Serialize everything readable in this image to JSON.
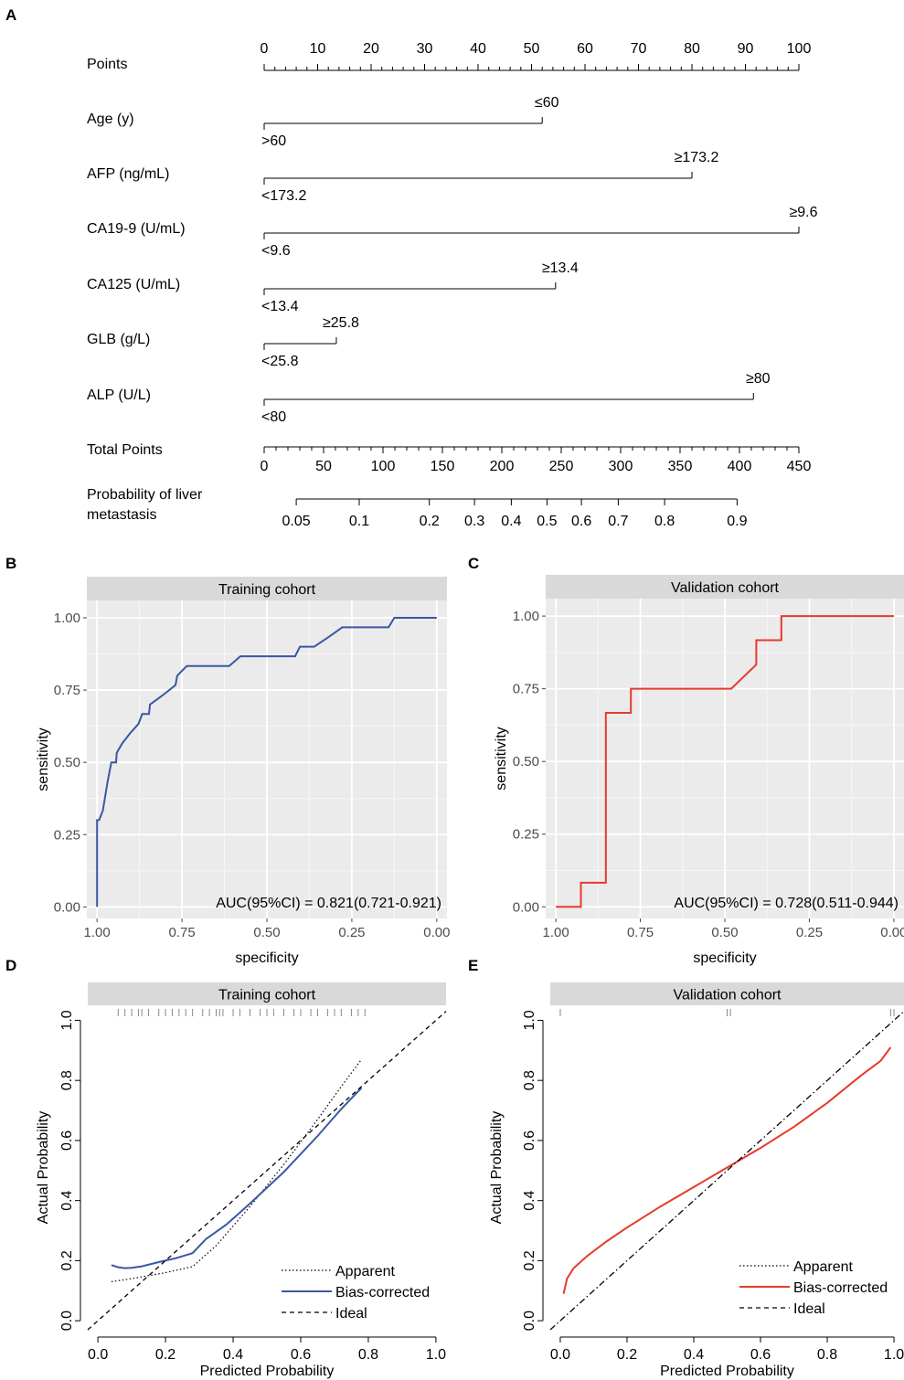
{
  "panel_labels": [
    "A",
    "B",
    "C",
    "D",
    "E"
  ],
  "nomogram": {
    "rows": [
      {
        "label": "Points"
      },
      {
        "label": "Age (y)",
        "end_points": 52,
        "high_label": "≤60",
        "low_label": ">60"
      },
      {
        "label": "AFP (ng/mL)",
        "end_points": 80,
        "high_label": "≥173.2",
        "low_label": "<173.2"
      },
      {
        "label": "CA19-9 (U/mL)",
        "end_points": 100,
        "high_label": "≥9.6",
        "low_label": "<9.6"
      },
      {
        "label": "CA125 (U/mL)",
        "end_points": 54.5,
        "high_label": "≥13.4",
        "low_label": "<13.4"
      },
      {
        "label": "GLB (g/L)",
        "end_points": 13.5,
        "high_label": "≥25.8",
        "low_label": "<25.8"
      },
      {
        "label": "ALP (U/L)",
        "end_points": 91.5,
        "high_label": "≥80",
        "low_label": "<80"
      },
      {
        "label": "Total Points"
      },
      {
        "label": "Probability of liver",
        "label2": "metastasis"
      }
    ],
    "points_ticks": [
      "0",
      "10",
      "20",
      "30",
      "40",
      "50",
      "60",
      "70",
      "80",
      "90",
      "100"
    ],
    "total_ticks": [
      "0",
      "50",
      "100",
      "150",
      "200",
      "250",
      "300",
      "350",
      "400",
      "450"
    ],
    "prob_ticks": [
      {
        "label": "0.05",
        "total": 27
      },
      {
        "label": "0.1",
        "total": 80
      },
      {
        "label": "0.2",
        "total": 139
      },
      {
        "label": "0.3",
        "total": 177
      },
      {
        "label": "0.4",
        "total": 208
      },
      {
        "label": "0.5",
        "total": 238
      },
      {
        "label": "0.6",
        "total": 267
      },
      {
        "label": "0.7",
        "total": 298
      },
      {
        "label": "0.8",
        "total": 337
      },
      {
        "label": "0.9",
        "total": 398
      }
    ]
  },
  "chart_data": [
    {
      "panel": "B",
      "type": "line",
      "title": "Training cohort",
      "xlabel": "specificity",
      "ylabel": "sensitivity",
      "x_reversed": true,
      "xlim": [
        1.0,
        0.0
      ],
      "ylim": [
        0,
        1
      ],
      "x_ticks": [
        "1.00",
        "0.75",
        "0.50",
        "0.25",
        "0.00"
      ],
      "y_ticks": [
        "0.00",
        "0.25",
        "0.50",
        "0.75",
        "1.00"
      ],
      "annotation": "AUC(95%CI) = 0.821(0.721-0.921)",
      "color": "#3a57a4",
      "series": [
        {
          "x": [
            1.0,
            1.0,
            0.994,
            0.983,
            0.969,
            0.958,
            0.944,
            0.942,
            0.925,
            0.903,
            0.878,
            0.867,
            0.847,
            0.844,
            0.806,
            0.769,
            0.764,
            0.736,
            0.694,
            0.644,
            0.639,
            0.611,
            0.578,
            0.569,
            0.486,
            0.417,
            0.403,
            0.361,
            0.319,
            0.278,
            0.264,
            0.142,
            0.125,
            0.106,
            0.0
          ],
          "y": [
            0.0,
            0.3,
            0.3,
            0.333,
            0.433,
            0.5,
            0.5,
            0.533,
            0.567,
            0.6,
            0.633,
            0.667,
            0.667,
            0.7,
            0.733,
            0.767,
            0.8,
            0.833,
            0.833,
            0.833,
            0.833,
            0.833,
            0.867,
            0.867,
            0.867,
            0.867,
            0.9,
            0.9,
            0.933,
            0.967,
            0.967,
            0.967,
            1.0,
            1.0,
            1.0
          ]
        }
      ]
    },
    {
      "panel": "C",
      "type": "line",
      "title": "Validation cohort",
      "xlabel": "specificity",
      "ylabel": "sensitivity",
      "x_reversed": true,
      "xlim": [
        1.0,
        0.0
      ],
      "ylim": [
        0,
        1
      ],
      "x_ticks": [
        "1.00",
        "0.75",
        "0.50",
        "0.25",
        "0.00"
      ],
      "y_ticks": [
        "0.00",
        "0.25",
        "0.50",
        "0.75",
        "1.00"
      ],
      "annotation": "AUC(95%CI) = 0.728(0.511-0.944)",
      "color": "#e8392b",
      "series": [
        {
          "x": [
            1.0,
            0.926,
            0.926,
            0.852,
            0.852,
            0.778,
            0.778,
            0.481,
            0.407,
            0.407,
            0.333,
            0.333,
            0.0
          ],
          "y": [
            0.0,
            0.0,
            0.083,
            0.083,
            0.667,
            0.667,
            0.75,
            0.75,
            0.833,
            0.917,
            0.917,
            1.0,
            1.0
          ]
        }
      ]
    },
    {
      "panel": "D",
      "type": "line",
      "title": "Training cohort",
      "xlabel": "Predicted Probability",
      "ylabel": "Actual Probability",
      "xlim": [
        -0.03,
        1.03
      ],
      "ylim": [
        -0.03,
        1.05
      ],
      "x_ticks": [
        "0.0",
        "0.2",
        "0.4",
        "0.6",
        "0.8",
        "1.0"
      ],
      "y_ticks": [
        "0.0",
        "0.2",
        "0.4",
        "0.6",
        "0.8",
        "1.0"
      ],
      "legend": [
        "Apparent",
        "Bias-corrected",
        "Ideal"
      ],
      "legend_position": "bottom-right",
      "color": "#3a57a4",
      "rug": [
        0.06,
        0.08,
        0.1,
        0.12,
        0.13,
        0.15,
        0.18,
        0.2,
        0.22,
        0.24,
        0.26,
        0.28,
        0.31,
        0.33,
        0.35,
        0.36,
        0.37,
        0.4,
        0.42,
        0.45,
        0.48,
        0.5,
        0.52,
        0.55,
        0.58,
        0.6,
        0.63,
        0.65,
        0.68,
        0.7,
        0.72,
        0.75,
        0.77,
        0.79
      ],
      "series": [
        {
          "name": "Apparent",
          "x": [
            0.04,
            0.1,
            0.2,
            0.28,
            0.35,
            0.45,
            0.55,
            0.65,
            0.72,
            0.78
          ],
          "y": [
            0.13,
            0.14,
            0.16,
            0.18,
            0.25,
            0.38,
            0.52,
            0.67,
            0.78,
            0.87
          ]
        },
        {
          "name": "Bias-corrected",
          "x": [
            0.04,
            0.06,
            0.08,
            0.1,
            0.13,
            0.18,
            0.23,
            0.28,
            0.32,
            0.38,
            0.45,
            0.55,
            0.65,
            0.72,
            0.78
          ],
          "y": [
            0.185,
            0.178,
            0.175,
            0.176,
            0.181,
            0.195,
            0.208,
            0.225,
            0.272,
            0.32,
            0.39,
            0.495,
            0.615,
            0.705,
            0.775
          ]
        },
        {
          "name": "Ideal",
          "x": [
            -0.03,
            1.03
          ],
          "y": [
            -0.03,
            1.03
          ]
        }
      ]
    },
    {
      "panel": "E",
      "type": "line",
      "title": "Validation cohort",
      "xlabel": "Predicted Probability",
      "ylabel": "Actual Probability",
      "xlim": [
        -0.03,
        1.03
      ],
      "ylim": [
        -0.03,
        1.05
      ],
      "x_ticks": [
        "0.0",
        "0.2",
        "0.4",
        "0.6",
        "0.8",
        "1.0"
      ],
      "y_ticks": [
        "0.0",
        "0.2",
        "0.4",
        "0.6",
        "0.8",
        "1.0"
      ],
      "legend": [
        "Apparent",
        "Bias-corrected",
        "Ideal"
      ],
      "legend_position": "bottom-right",
      "color": "#e8392b",
      "rug": [
        0.0,
        0.5,
        0.51,
        0.99,
        1.0
      ],
      "series": [
        {
          "name": "Bias-corrected",
          "x": [
            0.01,
            0.02,
            0.04,
            0.08,
            0.14,
            0.2,
            0.3,
            0.4,
            0.5,
            0.6,
            0.7,
            0.8,
            0.9,
            0.96,
            0.99
          ],
          "y": [
            0.09,
            0.14,
            0.175,
            0.215,
            0.265,
            0.31,
            0.38,
            0.445,
            0.51,
            0.575,
            0.645,
            0.725,
            0.815,
            0.865,
            0.91
          ]
        },
        {
          "name": "Ideal",
          "x": [
            -0.03,
            1.03
          ],
          "y": [
            -0.03,
            1.03
          ]
        }
      ]
    }
  ]
}
